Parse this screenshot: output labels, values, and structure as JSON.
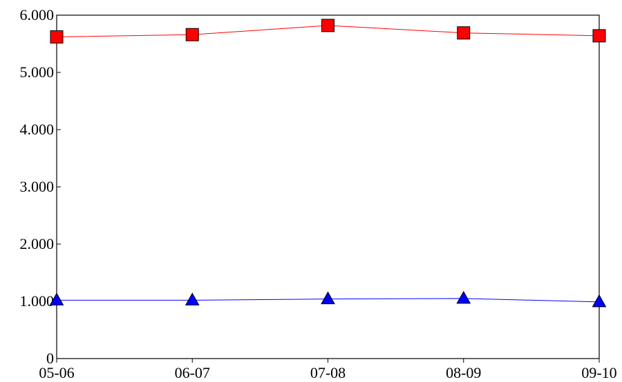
{
  "chart_data": {
    "type": "line",
    "categories": [
      "05-06",
      "06-07",
      "07-08",
      "08-09",
      "09-10"
    ],
    "ylim": [
      0,
      6000
    ],
    "yticks": [
      {
        "value": 0,
        "label": "0"
      },
      {
        "value": 1000,
        "label": "1.000"
      },
      {
        "value": 2000,
        "label": "2.000"
      },
      {
        "value": 3000,
        "label": "3.000"
      },
      {
        "value": 4000,
        "label": "4.000"
      },
      {
        "value": 5000,
        "label": "5.000"
      },
      {
        "value": 6000,
        "label": "6.000"
      }
    ],
    "grid": false,
    "series": [
      {
        "values": [
          5620,
          5660,
          5820,
          5690,
          5640
        ],
        "color": "#ff0000",
        "marker": "square"
      },
      {
        "values": [
          1020,
          1020,
          1040,
          1050,
          990
        ],
        "color": "#0000ff",
        "marker": "triangle"
      }
    ]
  }
}
